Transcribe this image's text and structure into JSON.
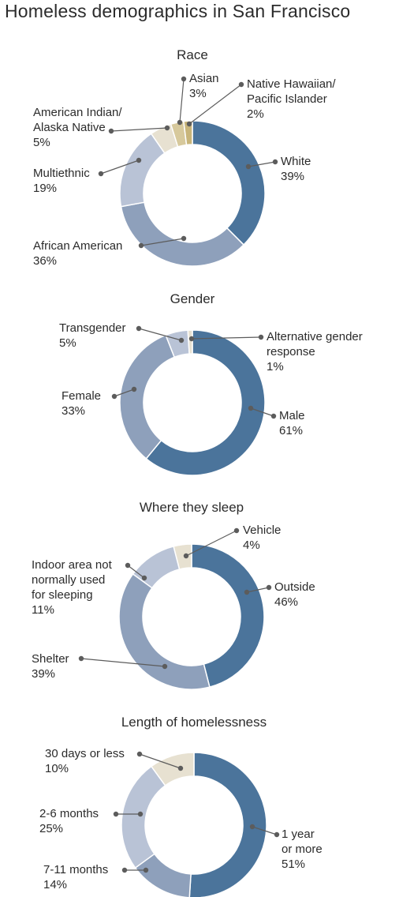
{
  "page_title": "Homeless demographics in San Francisco",
  "chart_data": [
    {
      "type": "pie",
      "title": "Race",
      "slices": [
        {
          "label_lines": [
            "White",
            "39%"
          ],
          "value": 39,
          "color": "#4b749b"
        },
        {
          "label_lines": [
            "African American",
            "36%"
          ],
          "value": 36,
          "color": "#8ea0bb"
        },
        {
          "label_lines": [
            "Multiethnic",
            "19%"
          ],
          "value": 19,
          "color": "#b9c3d6"
        },
        {
          "label_lines": [
            "American Indian/",
            "Alaska Native",
            "5%"
          ],
          "value": 5,
          "color": "#e7e1d1"
        },
        {
          "label_lines": [
            "Asian",
            "3%"
          ],
          "value": 3,
          "color": "#d7c99c"
        },
        {
          "label_lines": [
            "Native Hawaiian/",
            "Pacific Islander",
            "2%"
          ],
          "value": 2,
          "color": "#c8b57a"
        }
      ]
    },
    {
      "type": "pie",
      "title": "Gender",
      "slices": [
        {
          "label_lines": [
            "Male",
            "61%"
          ],
          "value": 61,
          "color": "#4b749b"
        },
        {
          "label_lines": [
            "Female",
            "33%"
          ],
          "value": 33,
          "color": "#8ea0bb"
        },
        {
          "label_lines": [
            "Transgender",
            "5%"
          ],
          "value": 5,
          "color": "#b9c3d6"
        },
        {
          "label_lines": [
            "Alternative gender",
            "response",
            "1%"
          ],
          "value": 1,
          "color": "#e7e1d1"
        }
      ]
    },
    {
      "type": "pie",
      "title": "Where they sleep",
      "slices": [
        {
          "label_lines": [
            "Outside",
            "46%"
          ],
          "value": 46,
          "color": "#4b749b"
        },
        {
          "label_lines": [
            "Shelter",
            "39%"
          ],
          "value": 39,
          "color": "#8ea0bb"
        },
        {
          "label_lines": [
            "Indoor area not",
            "normally used",
            "for sleeping",
            "11%"
          ],
          "value": 11,
          "color": "#b9c3d6"
        },
        {
          "label_lines": [
            "Vehicle",
            "4%"
          ],
          "value": 4,
          "color": "#e7e1d1"
        }
      ]
    },
    {
      "type": "pie",
      "title": "Length of  homelessness",
      "slices": [
        {
          "label_lines": [
            "1 year",
            "or more",
            "51%"
          ],
          "value": 51,
          "color": "#4b749b"
        },
        {
          "label_lines": [
            "7-11 months",
            "14%"
          ],
          "value": 14,
          "color": "#8ea0bb"
        },
        {
          "label_lines": [
            "2-6 months",
            "25%"
          ],
          "value": 25,
          "color": "#b9c3d6"
        },
        {
          "label_lines": [
            "30 days or less",
            "10%"
          ],
          "value": 10,
          "color": "#e7e1d1"
        }
      ]
    }
  ]
}
